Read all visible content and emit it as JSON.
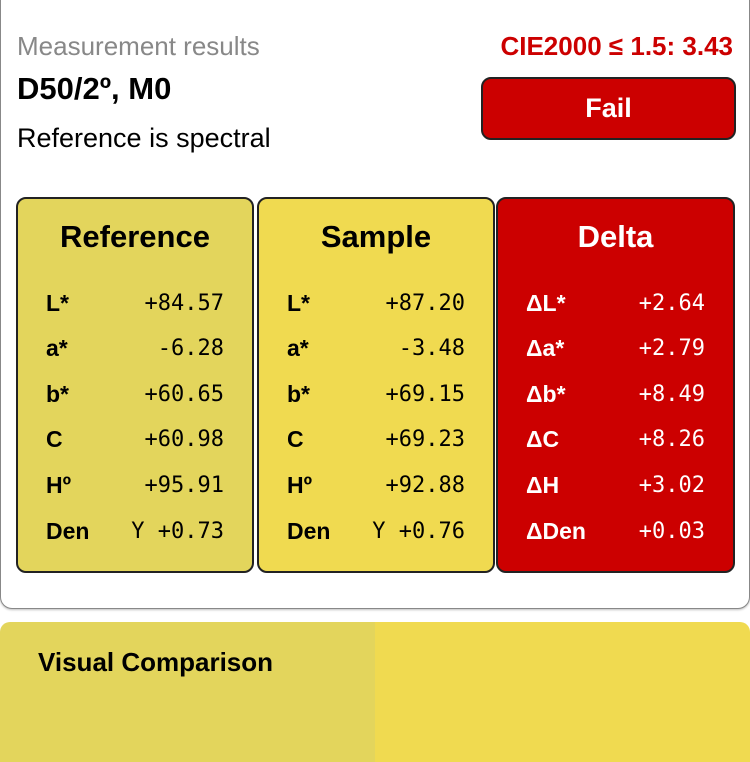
{
  "header": {
    "title": "Measurement results",
    "illuminant": "D50/2º, M0",
    "reference_note": "Reference is spectral",
    "criterion": "CIE2000 ≤ 1.5: 3.43",
    "status": "Fail"
  },
  "colors": {
    "reference": "#e3d55c",
    "sample": "#f0da50",
    "delta": "#cc0000",
    "fail": "#cc0000"
  },
  "panels": [
    {
      "title": "Reference",
      "rows": [
        {
          "label": "L*",
          "value": "+84.57"
        },
        {
          "label": "a*",
          "value": "-6.28"
        },
        {
          "label": "b*",
          "value": "+60.65"
        },
        {
          "label": "C",
          "value": "+60.98"
        },
        {
          "label": "Hº",
          "value": "+95.91"
        },
        {
          "label": "Den",
          "value": "Y +0.73"
        }
      ]
    },
    {
      "title": "Sample",
      "rows": [
        {
          "label": "L*",
          "value": "+87.20"
        },
        {
          "label": "a*",
          "value": "-3.48"
        },
        {
          "label": "b*",
          "value": "+69.15"
        },
        {
          "label": "C",
          "value": "+69.23"
        },
        {
          "label": "Hº",
          "value": "+92.88"
        },
        {
          "label": "Den",
          "value": "Y +0.76"
        }
      ]
    },
    {
      "title": "Delta",
      "rows": [
        {
          "label": "ΔL*",
          "value": "+2.64"
        },
        {
          "label": "Δa*",
          "value": "+2.79"
        },
        {
          "label": "Δb*",
          "value": "+8.49"
        },
        {
          "label": "ΔC",
          "value": "+8.26"
        },
        {
          "label": "ΔH",
          "value": "+3.02"
        },
        {
          "label": "ΔDen",
          "value": "+0.03"
        }
      ]
    }
  ],
  "visual_comparison": {
    "title": "Visual Comparison"
  }
}
